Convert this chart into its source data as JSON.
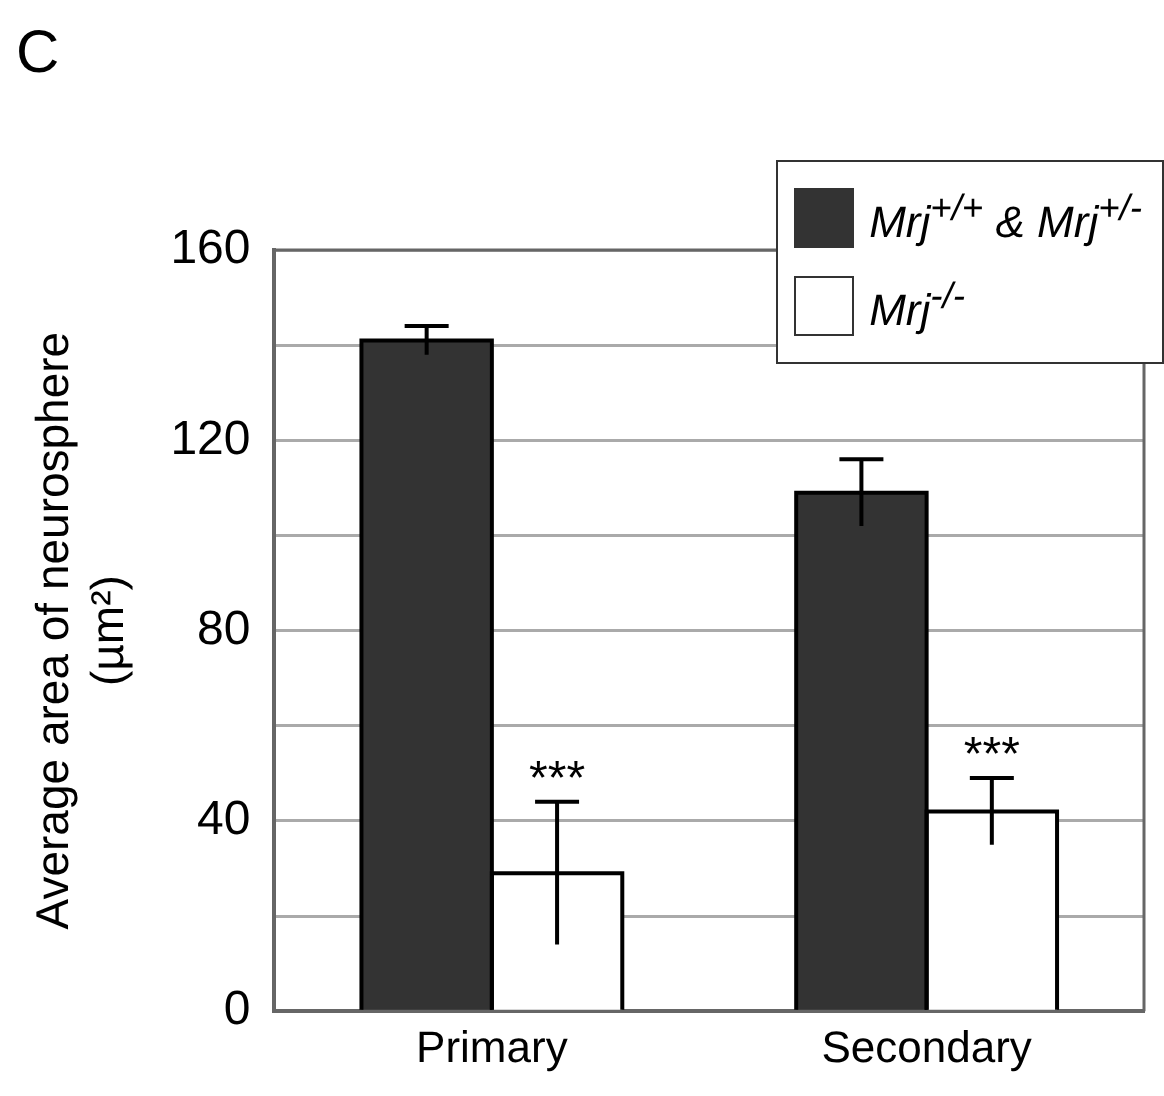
{
  "chart_data": {
    "type": "bar",
    "categories": [
      "Primary",
      "Secondary"
    ],
    "ylabel": "Average area of neurosphere (µm²)",
    "series": [
      {
        "name": "Mrj$^{+/+}$ & Mrj$^{+/-}$",
        "color": "#333333",
        "values": [
          141,
          109
        ],
        "errors": [
          3,
          7
        ]
      },
      {
        "name": "Mrj$^{-/-}$",
        "color": "#ffffff",
        "values": [
          29,
          42
        ],
        "errors": [
          15,
          7
        ]
      }
    ],
    "ylim": [
      0,
      160
    ],
    "yticks": [
      0,
      {
        "value": 20,
        "label": null
      },
      40,
      {
        "value": 60,
        "label": null
      },
      80,
      {
        "value": 100,
        "label": null
      },
      120,
      {
        "value": 140,
        "label": null
      },
      160
    ],
    "grid": "y",
    "legend": "top right",
    "annotations": [
      "C",
      {
        "text": "***",
        "x": "Primary",
        "y": 44
      },
      {
        "text": "***",
        "x": "Secondary",
        "y": 49
      }
    ]
  }
}
